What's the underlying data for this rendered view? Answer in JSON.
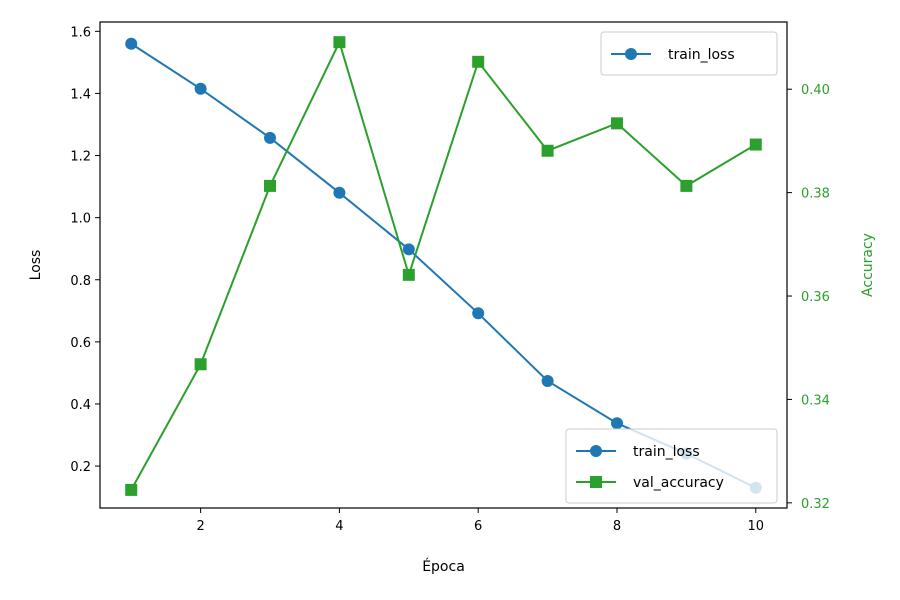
{
  "chart_data": {
    "type": "line",
    "title": "",
    "xlabel": "Época",
    "ylabel_left": "Loss",
    "ylabel_right": "Accuracy",
    "x": [
      1,
      2,
      3,
      4,
      5,
      6,
      7,
      8,
      9,
      10
    ],
    "xlim": [
      0.55,
      10.45
    ],
    "xticks": [
      2,
      4,
      6,
      8,
      10
    ],
    "y_left_lim": [
      0.065,
      1.63
    ],
    "y_left_ticks": [
      0.2,
      0.4,
      0.6,
      0.8,
      1.0,
      1.2,
      1.4,
      1.6
    ],
    "y_right_lim": [
      0.319,
      0.413
    ],
    "y_right_ticks": [
      0.32,
      0.34,
      0.36,
      0.38,
      0.4
    ],
    "grid": false,
    "series": [
      {
        "name": "train_loss",
        "axis": "left",
        "marker": "circle",
        "color": "#1f77b4",
        "values": [
          1.56,
          1.415,
          1.257,
          1.08,
          0.898,
          0.692,
          0.474,
          0.338,
          0.24,
          0.13
        ]
      },
      {
        "name": "val_accuracy",
        "axis": "right",
        "marker": "square",
        "color": "#2ca02c",
        "values": [
          0.3225,
          0.3468,
          0.3813,
          0.4091,
          0.3641,
          0.4053,
          0.3881,
          0.3934,
          0.3813,
          0.3893
        ]
      }
    ],
    "legends": [
      {
        "placement": "upper-right",
        "entries": [
          "train_loss"
        ]
      },
      {
        "placement": "lower-right",
        "entries": [
          "train_loss",
          "val_accuracy"
        ]
      }
    ],
    "right_axis_color": "#2ca02c"
  }
}
